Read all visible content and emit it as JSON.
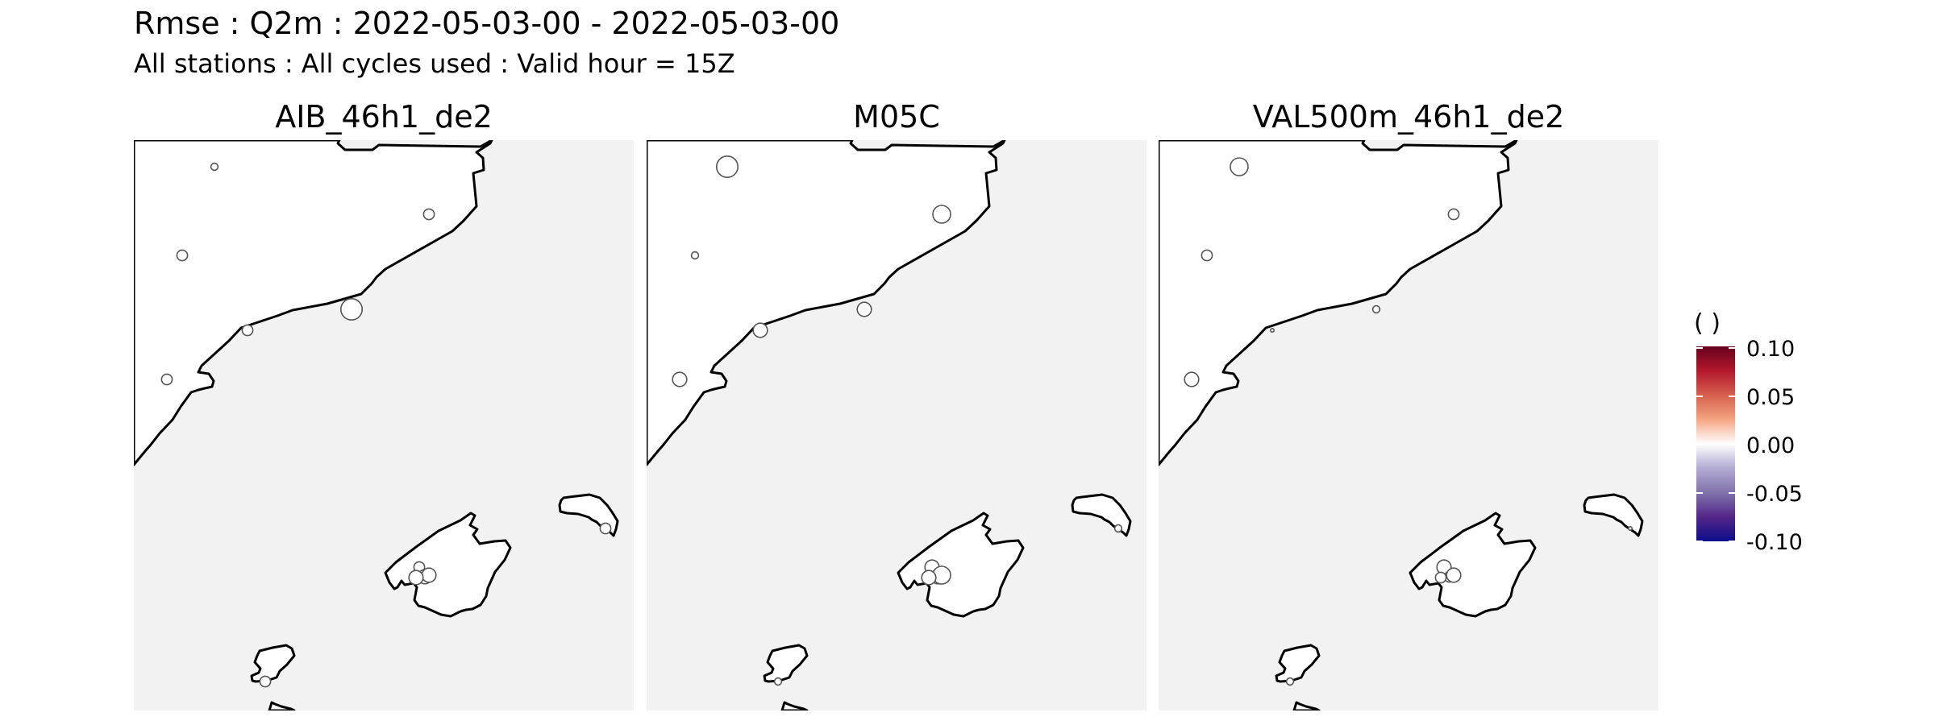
{
  "figure": {
    "title": "Rmse : Q2m : 2022-05-03-00 - 2022-05-03-00",
    "subtitle": "All stations : All cycles used : Valid hour = 15Z"
  },
  "colors": {
    "sea": "#f2f2f2",
    "land": "#ffffff",
    "coastline": "#000000",
    "station_fill": "#ffffff",
    "station_stroke": "#555555",
    "legend_gradient": [
      "#67001f",
      "#b2182b",
      "#d6604d",
      "#f4a582",
      "#ffffff",
      "#b2abd2",
      "#8073ac",
      "#542788",
      "#0c0c8c"
    ]
  },
  "legend": {
    "title": "( )",
    "ticks": [
      "0.10",
      "0.05",
      "0.00",
      "-0.05",
      "-0.10"
    ],
    "range": [
      -0.1,
      0.1
    ]
  },
  "chart_data": {
    "type": "scatter",
    "panels": [
      {
        "name": "AIB_46h1_de2",
        "stations": [
          {
            "id": "s1",
            "size": 2
          },
          {
            "id": "s2",
            "size": 3
          },
          {
            "id": "s3",
            "size": 3
          },
          {
            "id": "s4",
            "size": 3
          },
          {
            "id": "s5",
            "size": 6
          },
          {
            "id": "s6",
            "size": 3
          },
          {
            "id": "s7",
            "size": 3
          },
          {
            "id": "s8",
            "size": 4
          },
          {
            "id": "s9",
            "size": 4
          },
          {
            "id": "s10",
            "size": 4
          },
          {
            "id": "s11",
            "size": 3
          },
          {
            "id": "s12",
            "size": 3
          }
        ]
      },
      {
        "name": "M05C",
        "stations": [
          {
            "id": "s1",
            "size": 6
          },
          {
            "id": "s2",
            "size": 2
          },
          {
            "id": "s3",
            "size": 5
          },
          {
            "id": "s4",
            "size": 4
          },
          {
            "id": "s5",
            "size": 4
          },
          {
            "id": "s6",
            "size": 4
          },
          {
            "id": "s7",
            "size": 4
          },
          {
            "id": "s8",
            "size": 4
          },
          {
            "id": "s9",
            "size": 5
          },
          {
            "id": "s10",
            "size": 4
          },
          {
            "id": "s11",
            "size": 2
          },
          {
            "id": "s12",
            "size": 2
          }
        ]
      },
      {
        "name": "VAL500m_46h1_de2",
        "stations": [
          {
            "id": "s1",
            "size": 5
          },
          {
            "id": "s2",
            "size": 3
          },
          {
            "id": "s3",
            "size": 3
          },
          {
            "id": "s4",
            "size": 1
          },
          {
            "id": "s5",
            "size": 2
          },
          {
            "id": "s6",
            "size": 4
          },
          {
            "id": "s7",
            "size": 4
          },
          {
            "id": "s8",
            "size": 3
          },
          {
            "id": "s9",
            "size": 4
          },
          {
            "id": "s10",
            "size": 3
          },
          {
            "id": "s11",
            "size": 1
          },
          {
            "id": "s12",
            "size": 2
          }
        ]
      }
    ]
  }
}
